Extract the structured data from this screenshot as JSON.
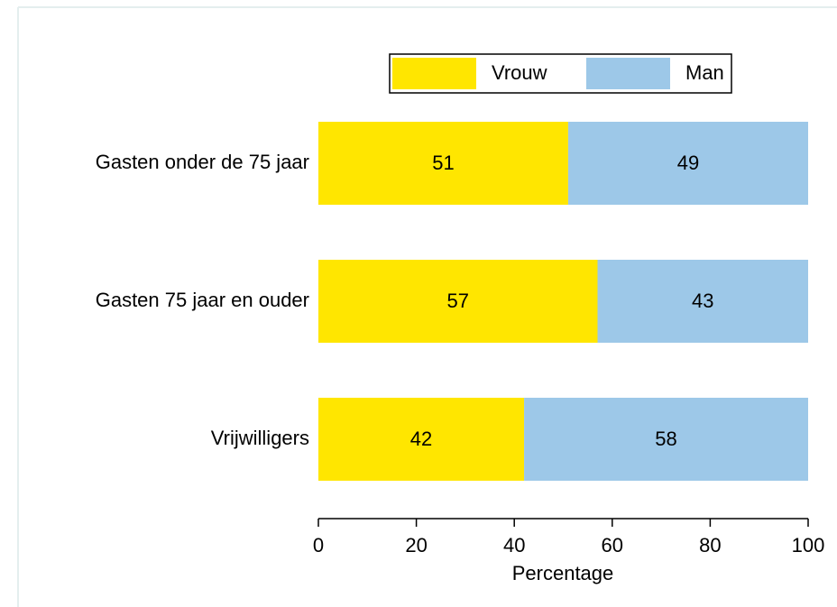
{
  "chart_data": {
    "type": "bar",
    "orientation": "horizontal",
    "stacked": true,
    "categories": [
      "Gasten onder de 75 jaar",
      "Gasten 75 jaar en ouder",
      "Vrijwilligers"
    ],
    "series": [
      {
        "name": "Vrouw",
        "color": "#ffe600",
        "values": [
          51,
          57,
          42
        ]
      },
      {
        "name": "Man",
        "color": "#9dc8e8",
        "values": [
          49,
          43,
          58
        ]
      }
    ],
    "xlim": [
      0,
      100
    ],
    "xticks": [
      0,
      20,
      40,
      60,
      80,
      100
    ],
    "xlabel": "Percentage",
    "legend": "top"
  }
}
